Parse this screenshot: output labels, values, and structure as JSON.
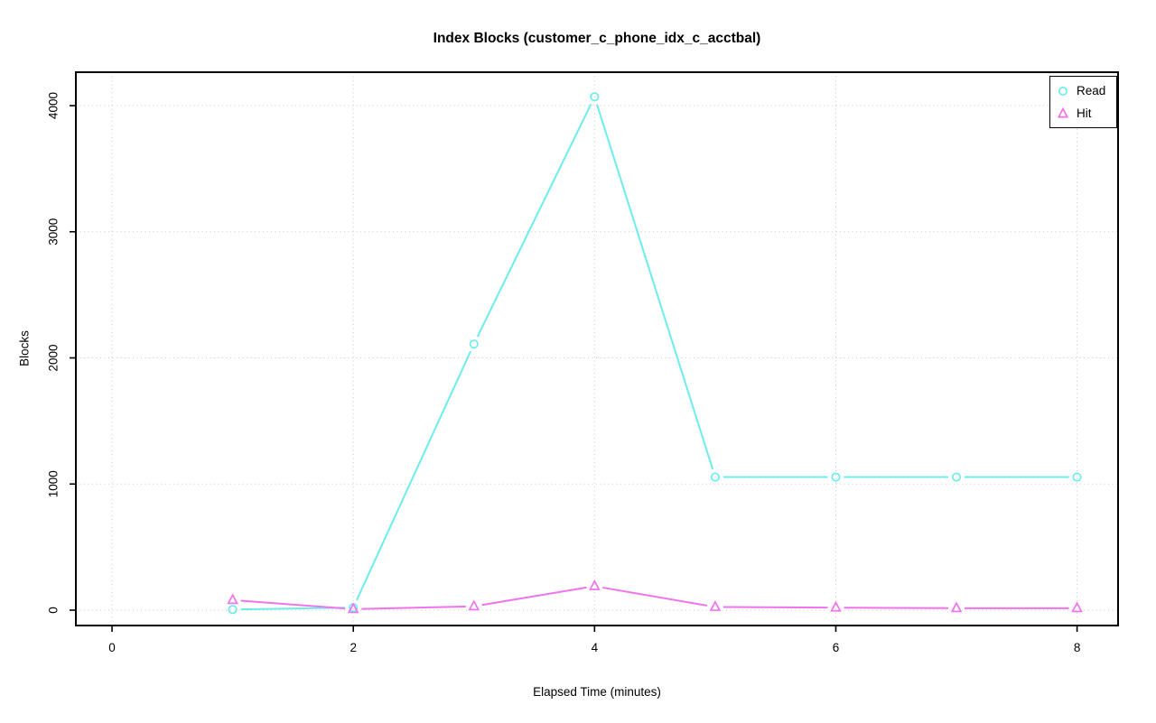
{
  "chart_data": {
    "type": "line",
    "title": "Index Blocks (customer_c_phone_idx_c_acctbal)",
    "xlabel": "Elapsed Time (minutes)",
    "ylabel": "Blocks",
    "x_ticks": [
      0,
      2,
      4,
      6,
      8
    ],
    "y_ticks": [
      0,
      1000,
      2000,
      3000,
      4000
    ],
    "xlim": [
      -0.3,
      8.34
    ],
    "ylim": [
      -122,
      4265
    ],
    "grid": true,
    "grid_style": "dotted",
    "legend_position": "topright",
    "x": [
      1,
      2,
      3,
      4,
      5,
      6,
      7,
      8
    ],
    "series": [
      {
        "name": "Read",
        "marker": "circle",
        "color": "#6CEDED",
        "values": [
          5,
          20,
          2110,
          4070,
          1055,
          1055,
          1055,
          1055
        ]
      },
      {
        "name": "Hit",
        "marker": "triangle",
        "color": "#F173EC",
        "values": [
          80,
          8,
          30,
          190,
          25,
          20,
          15,
          15
        ]
      }
    ],
    "colors": {
      "grid": "#C8C8C8",
      "axis": "#000000",
      "text": "#000000"
    }
  }
}
